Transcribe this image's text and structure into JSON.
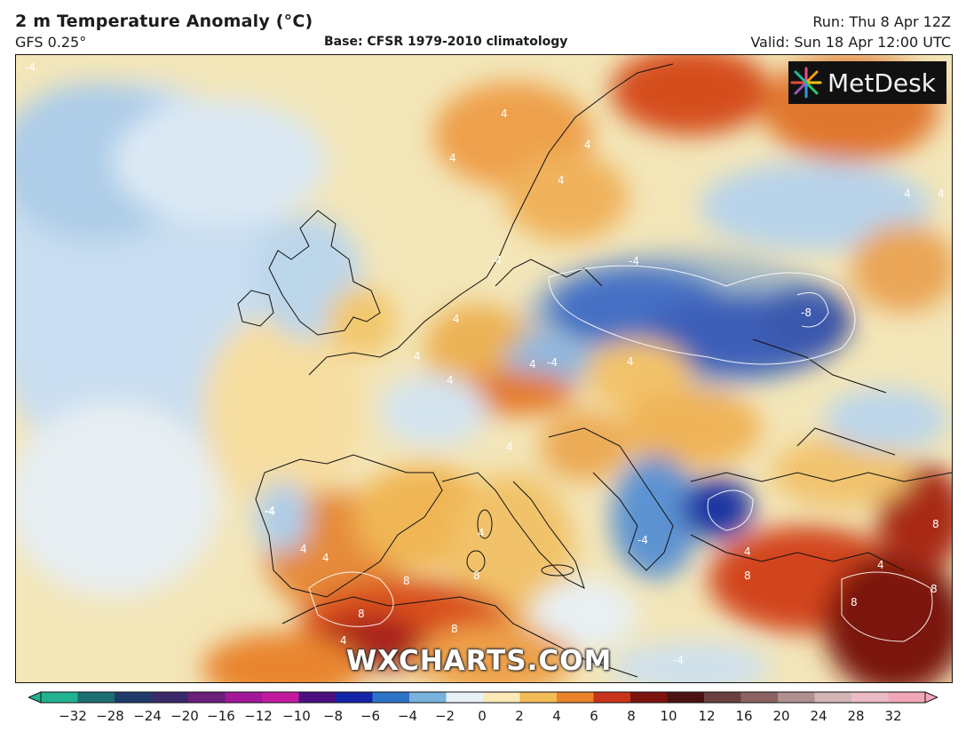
{
  "header": {
    "title": "2 m Temperature Anomaly (°C)",
    "model": "GFS 0.25°",
    "base": "Base: CFSR 1979-2010 climatology",
    "run": "Run: Thu 8 Apr 12Z",
    "valid": "Valid: Sun 18 Apr 12:00 UTC"
  },
  "branding": {
    "logo_text": "MetDesk",
    "watermark": "WXCHARTS.COM"
  },
  "map": {
    "variable": "2 m temperature anomaly",
    "region": "Europe, North Africa, Middle East",
    "contour_labels": [
      "-4",
      "4",
      "4",
      "4",
      "4",
      "-4",
      "4",
      "-8",
      "4",
      "-4",
      "4",
      "4",
      "4",
      "4",
      "-4",
      "4",
      "-4",
      "4",
      "-4",
      "4",
      "8",
      "4",
      "4",
      "8",
      "8",
      "8",
      "4",
      "-4",
      "8",
      "8",
      "8",
      "4",
      "4",
      "8",
      "-4"
    ]
  },
  "colorbar": {
    "labels": [
      "−32",
      "−28",
      "−24",
      "−20",
      "−16",
      "−12",
      "−10",
      "−8",
      "−6",
      "−4",
      "−2",
      "0",
      "2",
      "4",
      "6",
      "8",
      "10",
      "12",
      "16",
      "20",
      "24",
      "28",
      "32"
    ],
    "colors": [
      "#21b28f",
      "#1b6f73",
      "#203a69",
      "#3b2a6a",
      "#6a1f7a",
      "#a3179a",
      "#c21a9f",
      "#4b0f80",
      "#1424a8",
      "#2d74c6",
      "#79b2dc",
      "#e8f1f6",
      "#fbe9b8",
      "#f2bb55",
      "#e9842a",
      "#c8341b",
      "#7d1410",
      "#4a1212",
      "#6b4040",
      "#8d6262",
      "#b08f8f",
      "#d3b5b5",
      "#ecbcc6",
      "#f0a8b8"
    ]
  }
}
